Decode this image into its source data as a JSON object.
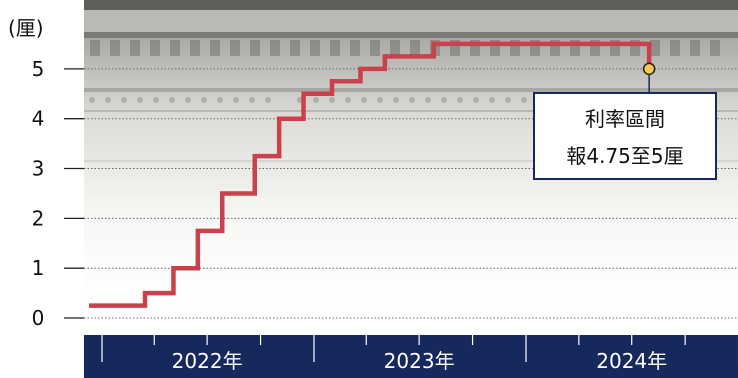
{
  "chart_data": {
    "type": "line",
    "step": true,
    "ylabel": "(厘)",
    "yticks": [
      0,
      1,
      2,
      3,
      4,
      5
    ],
    "ylim": [
      -0.2,
      5.9
    ],
    "x_unit": "date",
    "xlim": [
      "2021-12-01",
      "2024-12-31"
    ],
    "xtick_labels": [
      {
        "label": "2022年",
        "x": "2022-07-01"
      },
      {
        "label": "2023年",
        "x": "2023-07-01"
      },
      {
        "label": "2024年",
        "x": "2024-07-01"
      }
    ],
    "series": [
      {
        "color": "#c8414b",
        "points": [
          {
            "date": "2022-01-01",
            "value": 0.25
          },
          {
            "date": "2022-03-16",
            "value": 0.5
          },
          {
            "date": "2022-05-04",
            "value": 1.0
          },
          {
            "date": "2022-06-15",
            "value": 1.75
          },
          {
            "date": "2022-07-27",
            "value": 2.5
          },
          {
            "date": "2022-09-21",
            "value": 3.25
          },
          {
            "date": "2022-11-02",
            "value": 4.0
          },
          {
            "date": "2022-12-14",
            "value": 4.5
          },
          {
            "date": "2023-02-01",
            "value": 4.75
          },
          {
            "date": "2023-03-22",
            "value": 5.0
          },
          {
            "date": "2023-05-03",
            "value": 5.25
          },
          {
            "date": "2023-07-26",
            "value": 5.5
          },
          {
            "date": "2024-07-31",
            "value": 5.5
          },
          {
            "date": "2024-07-31",
            "value": 5.0
          }
        ]
      }
    ],
    "annotation": {
      "line1": "利率區間",
      "line2": "報4.75至5厘",
      "date": "2024-07-31",
      "value": 5.0,
      "marker_color": "#f3cc55"
    },
    "grid": true
  },
  "colors": {
    "axis_band": "#16285c",
    "gridline": "#666666",
    "label_box_border": "#16285c"
  }
}
